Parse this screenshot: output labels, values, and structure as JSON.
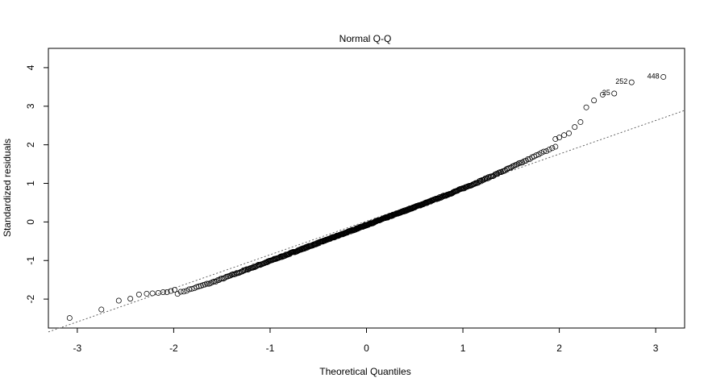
{
  "chart_data": {
    "type": "scatter",
    "title": "Normal Q-Q",
    "xlabel": "Theoretical Quantiles",
    "ylabel": "Standardized residuals",
    "xlim": [
      -3.3,
      3.3
    ],
    "ylim": [
      -2.75,
      4.5
    ],
    "x_ticks": [
      -3,
      -2,
      -1,
      0,
      1,
      2,
      3
    ],
    "y_ticks": [
      -2,
      -1,
      0,
      1,
      2,
      3,
      4
    ],
    "grid": false,
    "point_style": "open-circle",
    "n_points": 500,
    "reference_line": {
      "style": "dotted",
      "intercept": 0.02,
      "slope": 0.87
    },
    "body_fit": {
      "intercept": -0.08,
      "slope": 0.93
    },
    "lower_tail": [
      {
        "x": -3.08,
        "y": -2.49
      },
      {
        "x": -2.75,
        "y": -2.27
      },
      {
        "x": -2.57,
        "y": -2.04
      },
      {
        "x": -2.45,
        "y": -1.99
      },
      {
        "x": -2.36,
        "y": -1.88
      },
      {
        "x": -2.28,
        "y": -1.86
      },
      {
        "x": -2.22,
        "y": -1.85
      },
      {
        "x": -2.16,
        "y": -1.84
      },
      {
        "x": -2.11,
        "y": -1.82
      },
      {
        "x": -2.07,
        "y": -1.82
      },
      {
        "x": -2.03,
        "y": -1.79
      },
      {
        "x": -1.99,
        "y": -1.76
      }
    ],
    "upper_tail": [
      {
        "x": 1.96,
        "y": 2.15
      },
      {
        "x": 2.0,
        "y": 2.19
      },
      {
        "x": 2.05,
        "y": 2.25
      },
      {
        "x": 2.1,
        "y": 2.3
      },
      {
        "x": 2.16,
        "y": 2.46
      },
      {
        "x": 2.22,
        "y": 2.59
      },
      {
        "x": 2.28,
        "y": 2.97
      },
      {
        "x": 2.36,
        "y": 3.15
      },
      {
        "x": 2.45,
        "y": 3.3
      },
      {
        "x": 2.57,
        "y": 3.33
      },
      {
        "x": 2.75,
        "y": 3.62
      },
      {
        "x": 3.08,
        "y": 3.76
      }
    ],
    "labeled_points": [
      {
        "label": "448",
        "x": 3.08,
        "y": 3.76
      },
      {
        "label": "252",
        "x": 2.75,
        "y": 3.62
      },
      {
        "label": "25",
        "x": 2.57,
        "y": 3.33
      }
    ]
  }
}
